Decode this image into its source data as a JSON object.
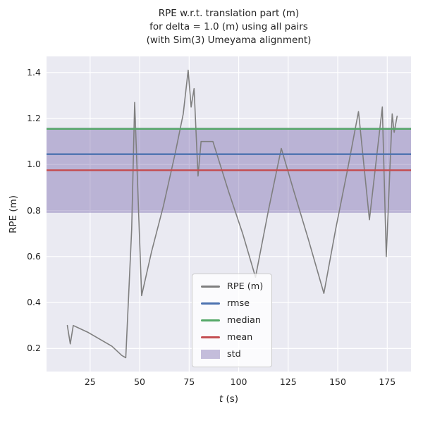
{
  "title": {
    "line1": "RPE w.r.t. translation part (m)",
    "line2": "for delta = 1.0 (m) using all pairs",
    "line3": "(with Sim(3) Umeyama alignment)"
  },
  "axes": {
    "ylabel": "RPE (m)",
    "xlabel_var": "t",
    "xlabel_unit": " (s)"
  },
  "legend": {
    "entries": [
      {
        "label": "RPE (m)",
        "color": "#7f7f7f",
        "swatch": "line",
        "opacity": 1
      },
      {
        "label": "rmse",
        "color": "#4C72B0",
        "swatch": "line",
        "opacity": 1
      },
      {
        "label": "median",
        "color": "#55A868",
        "swatch": "line",
        "opacity": 1
      },
      {
        "label": "mean",
        "color": "#C44E52",
        "swatch": "line",
        "opacity": 1
      },
      {
        "label": "std",
        "color": "#8172B2",
        "swatch": "patch",
        "opacity": 0.45
      }
    ]
  },
  "chart_data": {
    "type": "line",
    "title": "RPE w.r.t. translation part (m)\nfor delta = 1.0 (m) using all pairs\n(with Sim(3) Umeyama alignment)",
    "xlabel": "t (s)",
    "ylabel": "RPE (m)",
    "xlim": [
      3,
      187
    ],
    "ylim": [
      0.1,
      1.47
    ],
    "xticks": [
      25,
      50,
      75,
      100,
      125,
      150,
      175
    ],
    "yticks": [
      0.2,
      0.4,
      0.6,
      0.8,
      1.0,
      1.2,
      1.4
    ],
    "grid": true,
    "legend_position": "lower center",
    "background": "#EAEAF2",
    "gridline_color": "#ffffff",
    "series": [
      {
        "name": "RPE (m)",
        "color": "#7f7f7f",
        "x": [
          13.5,
          15,
          16.5,
          19,
          24,
          30,
          36,
          41,
          43,
          46,
          47.5,
          51,
          56,
          62,
          68,
          72,
          74.5,
          76,
          77.5,
          79.5,
          81,
          87,
          95,
          102,
          108.5,
          115,
          121.5,
          128,
          135,
          143,
          149,
          155,
          160.5,
          166,
          172.5,
          174.5,
          177.5,
          178.5,
          180
        ],
        "y": [
          0.3,
          0.22,
          0.3,
          0.29,
          0.27,
          0.24,
          0.21,
          0.17,
          0.16,
          0.72,
          1.27,
          0.43,
          0.62,
          0.82,
          1.05,
          1.22,
          1.41,
          1.25,
          1.33,
          0.95,
          1.1,
          1.1,
          0.88,
          0.7,
          0.51,
          0.8,
          1.07,
          0.88,
          0.68,
          0.44,
          0.72,
          0.98,
          1.23,
          0.76,
          1.25,
          0.6,
          1.22,
          1.14,
          1.21
        ]
      }
    ],
    "stat_lines": [
      {
        "name": "median",
        "value": 1.155,
        "color": "#55A868"
      },
      {
        "name": "rmse",
        "value": 1.045,
        "color": "#4C72B0"
      },
      {
        "name": "mean",
        "value": 0.975,
        "color": "#C44E52"
      }
    ],
    "std_band": {
      "name": "std",
      "low": 0.79,
      "high": 1.16,
      "color": "#8172B2",
      "opacity": 0.45
    }
  }
}
